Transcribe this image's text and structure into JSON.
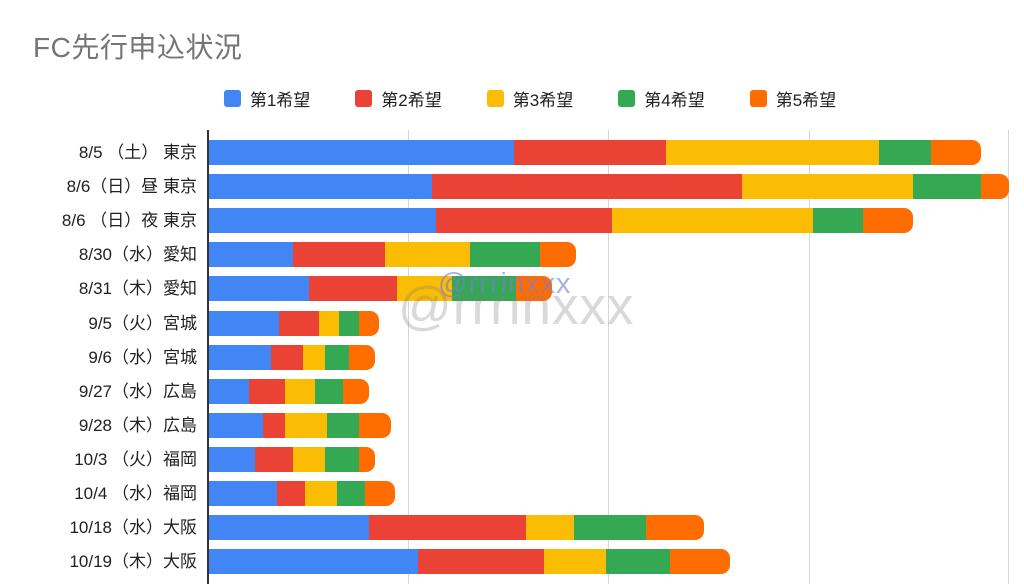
{
  "title": "FC先行申込状況",
  "legend": [
    {
      "label": "第1希望",
      "color": "#4285F4"
    },
    {
      "label": "第2希望",
      "color": "#EA4335"
    },
    {
      "label": "第3希望",
      "color": "#FBBC04"
    },
    {
      "label": "第4希望",
      "color": "#34A853"
    },
    {
      "label": "第5希望",
      "color": "#FF6D01"
    }
  ],
  "watermarks": {
    "small_text": "@rrrinxxx",
    "large_text": "@rrrinxxx"
  },
  "colors": {
    "title_gray": "#757575",
    "axis": "#333333",
    "gridline": "#d6d6d6",
    "background": "#ffffff"
  },
  "chart_data": {
    "type": "bar",
    "orientation": "horizontal",
    "stacked": true,
    "title": "FC先行申込状況",
    "xlabel": "",
    "ylabel": "",
    "x_axis_labels_visible": false,
    "xlim": [
      0,
      400
    ],
    "gridline_spacing": 100,
    "legend_position": "top",
    "categories": [
      "8/5 （土） 東京",
      "8/6（日）昼 東京",
      "8/6 （日）夜 東京",
      "8/30（水）愛知",
      "8/31（木）愛知",
      "9/5（火）宮城",
      "9/6（水）宮城",
      "9/27（水）広島",
      "9/28（木）広島",
      "10/3 （火）福岡",
      "10/4 （水）福岡",
      "10/18（水）大阪",
      "10/19（木）大阪"
    ],
    "series": [
      {
        "name": "第1希望",
        "color": "#4285F4",
        "values": [
          152,
          111,
          113,
          42,
          50,
          35,
          31,
          20,
          27,
          23,
          34,
          80,
          104
        ]
      },
      {
        "name": "第2希望",
        "color": "#EA4335",
        "values": [
          76,
          155,
          88,
          46,
          44,
          20,
          16,
          18,
          11,
          19,
          14,
          78,
          63
        ]
      },
      {
        "name": "第3希望",
        "color": "#FBBC04",
        "values": [
          106,
          85,
          100,
          42,
          27,
          10,
          11,
          15,
          21,
          16,
          16,
          24,
          31
        ]
      },
      {
        "name": "第4希望",
        "color": "#34A853",
        "values": [
          26,
          34,
          25,
          35,
          32,
          10,
          12,
          14,
          16,
          17,
          14,
          36,
          32
        ]
      },
      {
        "name": "第5希望",
        "color": "#FF6D01",
        "values": [
          25,
          14,
          25,
          18,
          18,
          10,
          13,
          13,
          16,
          8,
          15,
          29,
          30
        ]
      }
    ]
  }
}
